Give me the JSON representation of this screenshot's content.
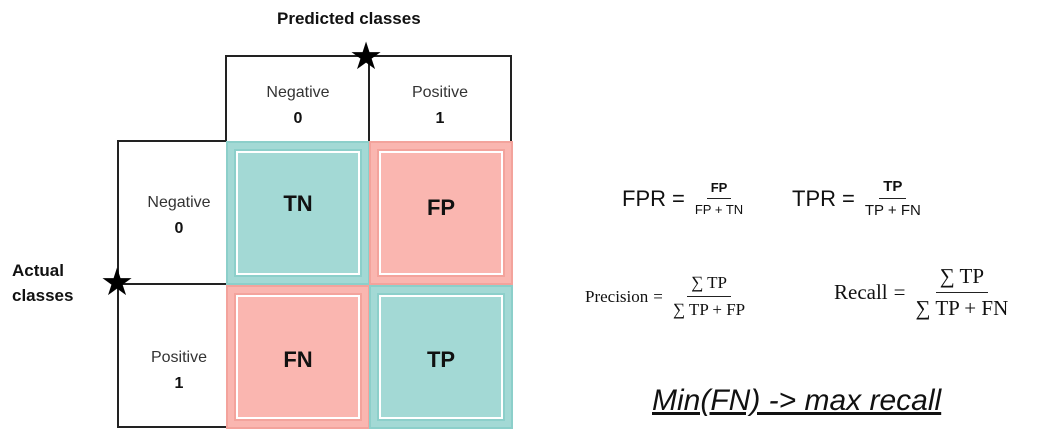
{
  "axis": {
    "predicted": "Predicted classes",
    "actual_line1": "Actual",
    "actual_line2": "classes"
  },
  "columns": [
    {
      "name": "Negative",
      "value": "0"
    },
    {
      "name": "Positive",
      "value": "1"
    }
  ],
  "rows": [
    {
      "name": "Negative",
      "value": "0"
    },
    {
      "name": "Positive",
      "value": "1"
    }
  ],
  "cells": {
    "tn": "TN",
    "fp": "FP",
    "fn": "FN",
    "tp": "TP"
  },
  "cell_colors": {
    "correct": "#a3d9d5",
    "error": "#fab6b0"
  },
  "icons": {
    "predicted_star": "star-icon",
    "actual_star": "star-icon"
  },
  "formulas": {
    "fpr": {
      "lhs": "FPR",
      "eq": "=",
      "num": "FP",
      "den": "FP + TN"
    },
    "tpr": {
      "lhs": "TPR",
      "eq": "=",
      "num": "TP",
      "den": "TP + FN"
    },
    "precision": {
      "lhs": "Precision",
      "eq": "=",
      "num": "∑ TP",
      "den": "∑ TP + FP"
    },
    "recall": {
      "lhs": "Recall",
      "eq": "=",
      "num": "∑ TP",
      "den": "∑ TP + FN"
    }
  },
  "note": "Min(FN) -> max recall"
}
